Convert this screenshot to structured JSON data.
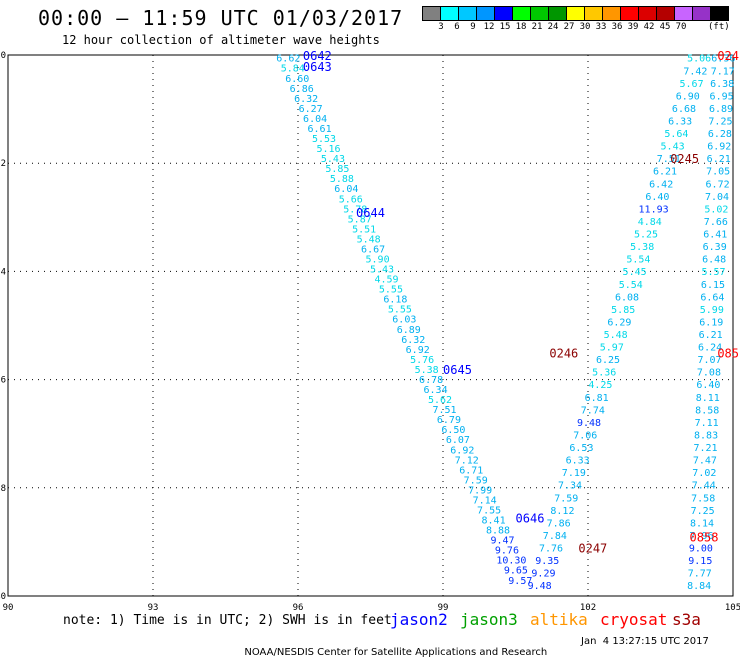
{
  "header": {
    "title": "00:00 – 11:59 UTC 01/03/2017",
    "subtitle": "12 hour collection of altimeter wave heights"
  },
  "color_scale": {
    "colors": [
      "#808080",
      "#00ffff",
      "#00c8ff",
      "#0096ff",
      "#0000ff",
      "#00ff00",
      "#00c800",
      "#009600",
      "#ffff00",
      "#ffc800",
      "#ff9600",
      "#ff0000",
      "#dc0000",
      "#b40000",
      "#c864ff",
      "#9632c8",
      "#000000"
    ],
    "labels": [
      "3",
      "6",
      "9",
      "12",
      "15",
      "18",
      "21",
      "24",
      "27",
      "30",
      "33",
      "36",
      "39",
      "42",
      "45",
      "70"
    ],
    "unit": "(ft)"
  },
  "chart_data": {
    "type": "scatter",
    "title": "00:00 – 11:59 UTC 01/03/2017",
    "subtitle": "12 hour collection of altimeter wave heights",
    "xlim": [
      90,
      105
    ],
    "ylim": [
      -40,
      -30
    ],
    "xticks": [
      90,
      93,
      96,
      99,
      102,
      105
    ],
    "yticks": [
      -30,
      -32,
      -34,
      -36,
      -38,
      -40
    ],
    "grid": true,
    "tracks": [
      {
        "satellite": "jason2",
        "time_labels": [
          {
            "text": "0642",
            "lon": 96.4,
            "lat": -30.0
          },
          {
            "text": "0643",
            "lon": 96.4,
            "lat": -30.2
          },
          {
            "text": "0644",
            "lon": 97.5,
            "lat": -32.9
          },
          {
            "text": "0645",
            "lon": 99.3,
            "lat": -35.8
          }
        ],
        "start": [
          95.8,
          -30.05
        ],
        "end": [
          100.6,
          -39.7
        ],
        "values": [
          6.62,
          5.84,
          6.6,
          6.86,
          6.32,
          6.27,
          6.04,
          6.61,
          5.53,
          5.16,
          5.43,
          5.85,
          5.88,
          6.04,
          5.66,
          5.78,
          5.87,
          5.51,
          5.48,
          6.67,
          5.9,
          5.43,
          4.59,
          5.55,
          6.18,
          5.55,
          6.03,
          6.89,
          6.32,
          6.92,
          5.76,
          5.38,
          6.78,
          6.34,
          5.62,
          7.51,
          6.79,
          6.5,
          6.07,
          6.92,
          7.12,
          6.71,
          7.59,
          7.99,
          7.14,
          7.55,
          8.41,
          8.88,
          9.47,
          9.76,
          10.3,
          9.65,
          9.57
        ]
      },
      {
        "satellite": "jason2",
        "time_labels": [
          {
            "text": "0646",
            "lon": 100.8,
            "lat": -38.55
          }
        ],
        "start": [
          101.0,
          -39.8
        ],
        "end": [
          104.3,
          -30.05
        ],
        "values": [
          9.48,
          9.29,
          9.35,
          7.76,
          7.84,
          7.86,
          8.12,
          7.59,
          7.34,
          7.19,
          6.33,
          6.53,
          7.06,
          9.48,
          7.74,
          6.81,
          4.25,
          5.36,
          6.25,
          5.97,
          5.48,
          6.29,
          5.85,
          6.08,
          5.54,
          5.45,
          5.54,
          5.38,
          5.25,
          4.84,
          11.93,
          6.4,
          6.42,
          6.21,
          7.51,
          5.43,
          5.64,
          6.33,
          6.68,
          6.9,
          5.67,
          7.42,
          5.06
        ]
      },
      {
        "satellite": "cryosat",
        "time_labels": [
          {
            "text": "0245",
            "lon": 104.0,
            "lat": -31.9
          },
          {
            "text": "0246",
            "lon": 101.5,
            "lat": -35.5
          },
          {
            "text": "0247",
            "lon": 102.1,
            "lat": -39.1
          }
        ],
        "start": [
          104.3,
          -39.8
        ],
        "end": [
          104.8,
          -30.05
        ],
        "values": [
          8.84,
          7.77,
          9.15,
          9.0,
          7.96,
          8.14,
          7.25,
          7.58,
          7.44,
          7.02,
          7.47,
          7.21,
          8.83,
          7.11,
          8.58,
          8.11,
          6.4,
          7.08,
          7.07,
          6.24,
          6.21,
          6.19,
          5.99,
          6.64,
          6.15,
          5.57,
          6.48,
          6.39,
          6.41,
          7.66,
          5.02,
          7.04,
          6.72,
          7.05,
          6.21,
          6.92,
          6.28,
          7.25,
          6.89,
          6.95,
          6.38,
          7.17,
          6.36
        ]
      },
      {
        "satellite": "s3a",
        "time_labels": [
          {
            "text": "024",
            "lon": 104.9,
            "lat": -30.0
          },
          {
            "text": "085",
            "lon": 104.9,
            "lat": -35.5
          },
          {
            "text": "0858",
            "lon": 104.4,
            "lat": -38.9
          }
        ],
        "start": null,
        "end": null,
        "values": []
      }
    ]
  },
  "tick_labels": {
    "x": [
      "90",
      "93",
      "96",
      "99",
      "102",
      "105"
    ],
    "y": [
      "-30",
      "-32",
      "-34",
      "-36",
      "-38",
      "-40"
    ]
  },
  "note": "note: 1) Time is in UTC; 2) SWH is in feet",
  "legend": [
    {
      "name": "jason2",
      "color": "#0000ff"
    },
    {
      "name": "jason3",
      "color": "#00a000"
    },
    {
      "name": "altika",
      "color": "#ff9600"
    },
    {
      "name": "cryosat",
      "color": "#ff0000"
    },
    {
      "name": "s3a",
      "color": "#a00000"
    }
  ],
  "footer": {
    "credit": "NOAA/NESDIS Center for Satellite Applications and Research",
    "timestamp": "Jan  4 13:27:15 UTC 2017"
  }
}
